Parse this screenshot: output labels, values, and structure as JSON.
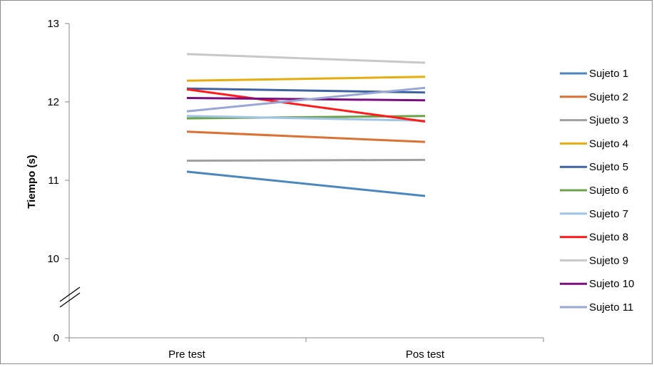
{
  "chart_data": {
    "type": "line",
    "title": "",
    "xlabel": "",
    "ylabel": "Tiempo (s)",
    "categories": [
      "Pre test",
      "Pos test"
    ],
    "y_ticks": [
      "13",
      "12",
      "11",
      "10",
      "0"
    ],
    "ylim": [
      10,
      13
    ],
    "axis_break": true,
    "axis_break_value": 0,
    "grid": false,
    "legend_position": "right",
    "series": [
      {
        "name": "Sujeto 1",
        "values": [
          11.11,
          10.8
        ],
        "color": "#4a86c0"
      },
      {
        "name": "Sujeto 2",
        "values": [
          11.62,
          11.49
        ],
        "color": "#dc7134"
      },
      {
        "name": "Sjueto 3",
        "values": [
          11.25,
          11.26
        ],
        "color": "#a0a0a0"
      },
      {
        "name": "Sujeto 4",
        "values": [
          12.27,
          12.32
        ],
        "color": "#e8ac0f"
      },
      {
        "name": "Sujeto 5",
        "values": [
          12.17,
          12.12
        ],
        "color": "#3f63a4"
      },
      {
        "name": "Sujeto 6",
        "values": [
          11.79,
          11.82
        ],
        "color": "#6ca349"
      },
      {
        "name": "Sujeto 7",
        "values": [
          11.82,
          11.76
        ],
        "color": "#9fc4e6"
      },
      {
        "name": "Sujeto 8",
        "values": [
          12.16,
          11.75
        ],
        "color": "#ff1b1b"
      },
      {
        "name": "Sujeto 9",
        "values": [
          12.61,
          12.5
        ],
        "color": "#c8c8c8"
      },
      {
        "name": "Sujeto 10",
        "values": [
          12.05,
          12.02
        ],
        "color": "#7a0e80"
      },
      {
        "name": "Sujeto 11",
        "values": [
          11.88,
          12.18
        ],
        "color": "#9aa6d6"
      }
    ]
  }
}
